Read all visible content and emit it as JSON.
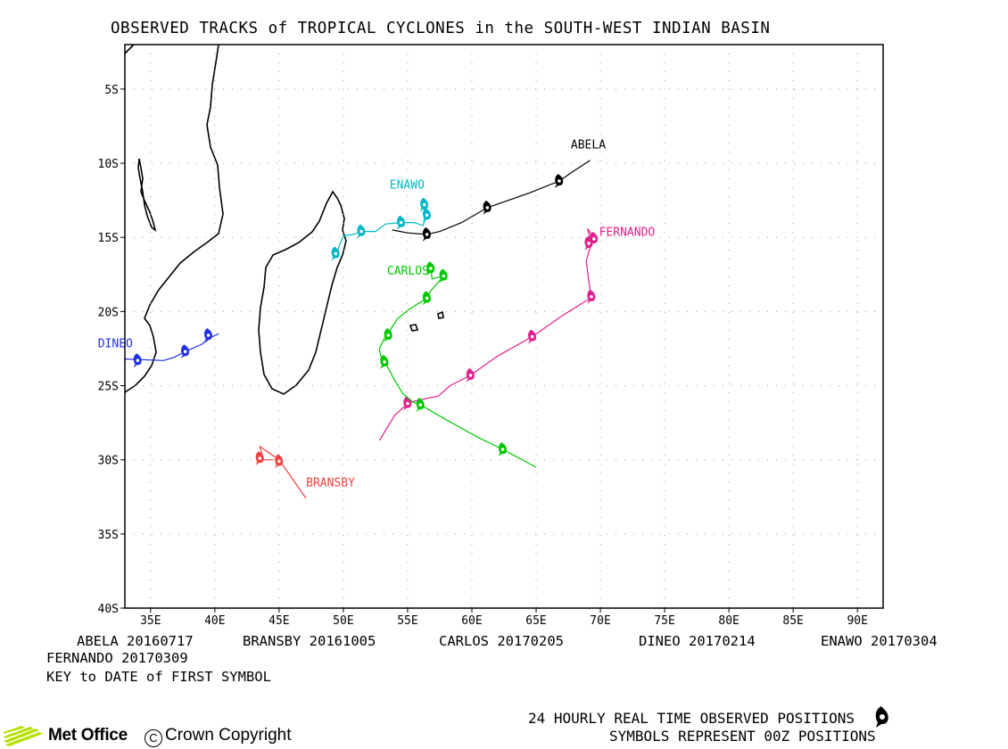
{
  "title": "OBSERVED TRACKS of TROPICAL CYCLONES in the SOUTH-WEST INDIAN BASIN",
  "axes": {
    "lat_ticks": [
      "5S",
      "10S",
      "15S",
      "20S",
      "25S",
      "30S",
      "35S",
      "40S"
    ],
    "lon_ticks": [
      "35E",
      "40E",
      "45E",
      "50E",
      "55E",
      "60E",
      "65E",
      "70E",
      "75E",
      "80E",
      "85E",
      "90E"
    ],
    "lon_range": [
      33,
      92
    ],
    "lat_range": [
      -40,
      -2
    ]
  },
  "storms": [
    {
      "name": "ABELA",
      "color": "#000000",
      "track": [
        [
          69.2,
          -9.8
        ],
        [
          67.8,
          -10.6
        ],
        [
          66.8,
          -11.2
        ],
        [
          64.5,
          -12.0
        ],
        [
          61.2,
          -13.0
        ],
        [
          59.2,
          -14.0
        ],
        [
          57.5,
          -14.6
        ],
        [
          56.5,
          -14.8
        ],
        [
          55.0,
          -14.7
        ],
        [
          53.8,
          -14.5
        ]
      ],
      "symbols": [
        [
          66.8,
          -11.2
        ],
        [
          61.2,
          -13.0
        ],
        [
          56.5,
          -14.8
        ]
      ]
    },
    {
      "name": "ENAWO",
      "color": "#00b8c8",
      "track": [
        [
          56.3,
          -12.7
        ],
        [
          56.5,
          -13.5
        ],
        [
          56.2,
          -14.2
        ],
        [
          55.5,
          -14.0
        ],
        [
          54.5,
          -14.0
        ],
        [
          53.3,
          -14.1
        ],
        [
          52.5,
          -14.6
        ],
        [
          51.4,
          -14.6
        ],
        [
          50.8,
          -14.8
        ],
        [
          50.0,
          -14.9
        ],
        [
          49.7,
          -15.5
        ],
        [
          49.5,
          -16.1
        ]
      ],
      "symbols": [
        [
          56.3,
          -12.8
        ],
        [
          56.5,
          -13.5
        ],
        [
          54.5,
          -14.0
        ],
        [
          51.4,
          -14.6
        ],
        [
          49.4,
          -16.1
        ]
      ]
    },
    {
      "name": "FERNANDO",
      "color": "#e0208c",
      "track": [
        [
          69.6,
          -15.2
        ],
        [
          69.0,
          -14.4
        ],
        [
          69.3,
          -15.4
        ],
        [
          68.9,
          -16.6
        ],
        [
          69.2,
          -18.6
        ],
        [
          69.4,
          -19.0
        ],
        [
          67.0,
          -20.3
        ],
        [
          64.7,
          -21.7
        ],
        [
          62.0,
          -23.0
        ],
        [
          59.9,
          -24.3
        ],
        [
          58.3,
          -25.0
        ],
        [
          57.4,
          -25.7
        ],
        [
          55.7,
          -26.0
        ],
        [
          55.0,
          -26.2
        ],
        [
          54.0,
          -27.0
        ],
        [
          52.8,
          -28.7
        ]
      ],
      "symbols": [
        [
          69.5,
          -15.1
        ],
        [
          69.1,
          -15.4
        ],
        [
          69.3,
          -19.0
        ],
        [
          64.7,
          -21.7
        ],
        [
          59.9,
          -24.3
        ],
        [
          55.0,
          -26.2
        ]
      ]
    },
    {
      "name": "CARLOS",
      "color": "#00c800",
      "track": [
        [
          56.8,
          -17.0
        ],
        [
          56.9,
          -17.8
        ],
        [
          57.8,
          -17.6
        ],
        [
          57.4,
          -18.0
        ],
        [
          56.8,
          -18.6
        ],
        [
          56.5,
          -19.1
        ],
        [
          55.2,
          -19.8
        ],
        [
          54.2,
          -20.5
        ],
        [
          53.6,
          -21.3
        ],
        [
          53.2,
          -21.8
        ],
        [
          52.8,
          -22.5
        ],
        [
          52.9,
          -23.0
        ],
        [
          53.3,
          -23.5
        ],
        [
          53.9,
          -24.5
        ],
        [
          54.6,
          -25.5
        ],
        [
          55.4,
          -26.1
        ],
        [
          56.0,
          -26.3
        ],
        [
          58.0,
          -27.3
        ],
        [
          60.5,
          -28.5
        ],
        [
          62.4,
          -29.3
        ],
        [
          65.0,
          -30.5
        ]
      ],
      "symbols": [
        [
          56.8,
          -17.1
        ],
        [
          57.8,
          -17.6
        ],
        [
          56.5,
          -19.1
        ],
        [
          53.5,
          -21.6
        ],
        [
          53.2,
          -23.4
        ],
        [
          56.0,
          -26.3
        ],
        [
          62.4,
          -29.3
        ]
      ]
    },
    {
      "name": "DINEO",
      "color": "#2030e8",
      "track": [
        [
          33.0,
          -23.2
        ],
        [
          36.0,
          -23.3
        ],
        [
          36.8,
          -23.1
        ],
        [
          37.7,
          -22.7
        ],
        [
          39.0,
          -22.2
        ],
        [
          39.8,
          -21.7
        ],
        [
          40.3,
          -21.5
        ]
      ],
      "symbols": [
        [
          34.0,
          -23.3
        ],
        [
          37.7,
          -22.7
        ],
        [
          39.5,
          -21.6
        ]
      ]
    },
    {
      "name": "BRANSBY",
      "color": "#f04040",
      "track": [
        [
          47.1,
          -32.6
        ],
        [
          45.0,
          -30.0
        ],
        [
          43.5,
          -29.1
        ],
        [
          43.8,
          -30.0
        ],
        [
          44.6,
          -30.0
        ]
      ],
      "symbols": [
        [
          43.5,
          -29.9
        ],
        [
          45.0,
          -30.1
        ]
      ]
    }
  ],
  "label_positions_note_removed": true,
  "key_entries": [
    {
      "name": "ABELA",
      "date": "20160717"
    },
    {
      "name": "BRANSBY",
      "date": "20161005"
    },
    {
      "name": "CARLOS",
      "date": "20170205"
    },
    {
      "name": "DINEO",
      "date": "20170214"
    },
    {
      "name": "ENAWO",
      "date": "20170304"
    },
    {
      "name": "FERNANDO",
      "date": "20170309"
    }
  ],
  "key_caption": "KEY to DATE of FIRST SYMBOL",
  "footer": {
    "positions": "24 HOURLY REAL TIME OBSERVED POSITIONS",
    "symbols": "SYMBOLS REPRESENT 00Z POSITIONS"
  },
  "brand": {
    "name": "Met Office",
    "copyright": "Crown Copyright",
    "copyright_symbol": "C"
  },
  "colors": {
    "frame": "#000000",
    "grid": "#9a9a9a",
    "logo": "#b4e000"
  },
  "icons": [
    "cyclone-symbol-icon",
    "met-office-logo-icon"
  ]
}
